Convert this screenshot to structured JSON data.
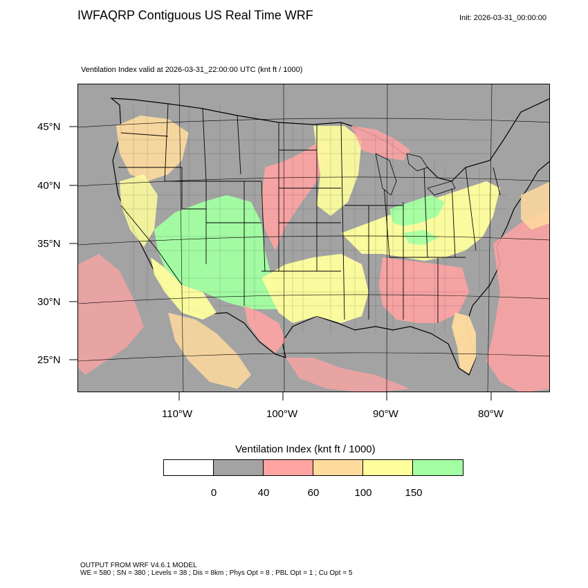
{
  "header": {
    "title": "IWFAQRP Contiguous US Real Time WRF",
    "init": "Init: 2026-03-31_00:00:00",
    "subtitle": "Ventilation Index valid at 2026-03-31_22:00:00 UTC   (knt ft / 1000)"
  },
  "map": {
    "lat_labels": [
      "45°N",
      "40°N",
      "35°N",
      "30°N",
      "25°N"
    ],
    "lon_labels": [
      "110°W",
      "100°W",
      "90°W",
      "80°W"
    ],
    "colors": {
      "water_gray": "#a3a3a3",
      "border": "#000000"
    }
  },
  "legend": {
    "title": "Ventilation Index  (knt ft / 1000)",
    "colors": [
      "#ffffff",
      "#a3a3a3",
      "#ffa3a3",
      "#ffdb9e",
      "#ffff9e",
      "#a3ffa3"
    ],
    "ticks": [
      "0",
      "40",
      "60",
      "100",
      "150"
    ]
  },
  "footer": {
    "line1": "OUTPUT FROM WRF V4.6.1 MODEL",
    "line2": "WE = 580 ; SN = 380 ; Levels = 38 ; Dis = 8km ; Phys Opt = 8 ; PBL Opt = 1 ; Cu Opt = 5"
  }
}
